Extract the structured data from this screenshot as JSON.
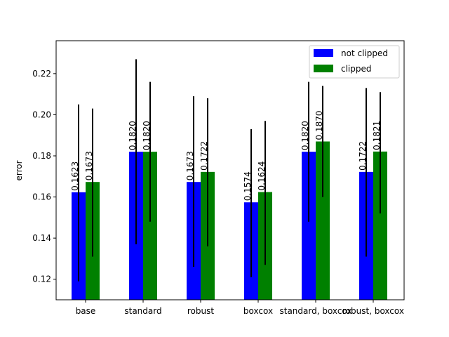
{
  "chart_data": {
    "type": "bar",
    "title": "",
    "xlabel": "",
    "ylabel": "error",
    "categories": [
      "base",
      "standard",
      "robust",
      "boxcox",
      "standard, boxcox",
      "robust, boxcox"
    ],
    "series": [
      {
        "name": "not clipped",
        "color": "#0000ff",
        "values": [
          0.1623,
          0.182,
          0.1673,
          0.1574,
          0.182,
          0.1722
        ],
        "labels": [
          "0.1623",
          "0.1820",
          "0.1673",
          "0.1574",
          "0.1820",
          "0.1722"
        ],
        "error_low": [
          0.119,
          0.137,
          0.126,
          0.121,
          0.148,
          0.131
        ],
        "error_high": [
          0.205,
          0.227,
          0.209,
          0.193,
          0.216,
          0.213
        ]
      },
      {
        "name": "clipped",
        "color": "#008000",
        "values": [
          0.1673,
          0.182,
          0.1722,
          0.1624,
          0.187,
          0.1821
        ],
        "labels": [
          "0.1673",
          "0.1820",
          "0.1722",
          "0.1624",
          "0.1870",
          "0.1821"
        ],
        "error_low": [
          0.131,
          0.148,
          0.136,
          0.127,
          0.16,
          0.152
        ],
        "error_high": [
          0.203,
          0.216,
          0.208,
          0.197,
          0.214,
          0.211
        ]
      }
    ],
    "ylim": [
      0.11,
      0.236
    ],
    "yticks": [
      0.12,
      0.14,
      0.16,
      0.18,
      0.2,
      0.22
    ],
    "ytick_labels": [
      "0.12",
      "0.14",
      "0.16",
      "0.18",
      "0.20",
      "0.22"
    ],
    "grid": false,
    "legend_position": "top-right",
    "error_bar_color": "#000000"
  }
}
